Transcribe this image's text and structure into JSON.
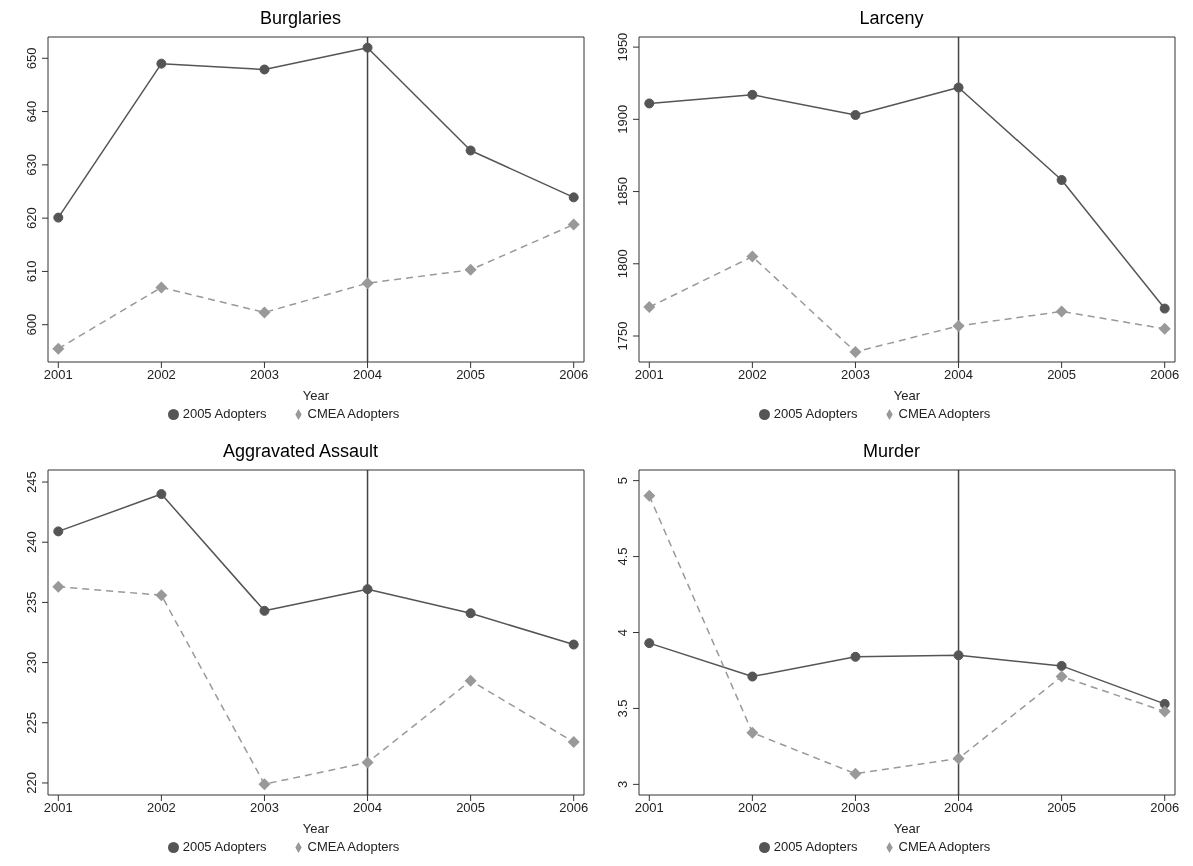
{
  "chart_data": [
    {
      "type": "line",
      "title": "Burglaries",
      "xlabel": "Year",
      "x": [
        2001,
        2002,
        2003,
        2004,
        2005,
        2006
      ],
      "xlim": [
        2000.9,
        2006.1
      ],
      "xticks": [
        2001,
        2002,
        2003,
        2004,
        2005,
        2006
      ],
      "ylim": [
        593,
        654
      ],
      "yticks": [
        600,
        610,
        620,
        630,
        640,
        650
      ],
      "grid": false,
      "legend": "bottom",
      "ref_lines": [
        {
          "axis": "x",
          "value": 2004,
          "color": "#444444"
        }
      ],
      "series": [
        {
          "name": "2005 Adopters",
          "color": "#555555",
          "marker": "circle",
          "line_style": "solid",
          "values": [
            620.1,
            649.0,
            647.9,
            652.0,
            632.7,
            623.9
          ]
        },
        {
          "name": "CMEA Adopters",
          "color": "#999999",
          "marker": "diamond",
          "line_style": "dashed",
          "values": [
            595.5,
            607.0,
            602.3,
            607.8,
            610.3,
            618.8
          ]
        }
      ]
    },
    {
      "type": "line",
      "title": "Larceny",
      "xlabel": "Year",
      "x": [
        2001,
        2002,
        2003,
        2004,
        2005,
        2006
      ],
      "xlim": [
        2000.9,
        2006.1
      ],
      "xticks": [
        2001,
        2002,
        2003,
        2004,
        2005,
        2006
      ],
      "ylim": [
        1732,
        1957
      ],
      "yticks": [
        1750,
        1800,
        1850,
        1900,
        1950
      ],
      "grid": false,
      "legend": "bottom",
      "ref_lines": [
        {
          "axis": "x",
          "value": 2004,
          "color": "#444444"
        }
      ],
      "series": [
        {
          "name": "2005 Adopters",
          "color": "#555555",
          "marker": "circle",
          "line_style": "solid",
          "values": [
            1911,
            1917,
            1903,
            1922,
            1858,
            1769
          ]
        },
        {
          "name": "CMEA Adopters",
          "color": "#999999",
          "marker": "diamond",
          "line_style": "dashed",
          "values": [
            1770,
            1805,
            1739,
            1757,
            1767,
            1755
          ]
        }
      ]
    },
    {
      "type": "line",
      "title": "Aggravated Assault",
      "xlabel": "Year",
      "x": [
        2001,
        2002,
        2003,
        2004,
        2005,
        2006
      ],
      "xlim": [
        2000.9,
        2006.1
      ],
      "xticks": [
        2001,
        2002,
        2003,
        2004,
        2005,
        2006
      ],
      "ylim": [
        219,
        246
      ],
      "yticks": [
        220,
        225,
        230,
        235,
        240,
        245
      ],
      "grid": false,
      "legend": "bottom",
      "ref_lines": [
        {
          "axis": "x",
          "value": 2004,
          "color": "#444444"
        }
      ],
      "series": [
        {
          "name": "2005 Adopters",
          "color": "#555555",
          "marker": "circle",
          "line_style": "solid",
          "values": [
            240.9,
            244.0,
            234.3,
            236.1,
            234.1,
            231.5
          ]
        },
        {
          "name": "CMEA Adopters",
          "color": "#999999",
          "marker": "diamond",
          "line_style": "dashed",
          "values": [
            236.3,
            235.6,
            219.9,
            221.7,
            228.5,
            223.4
          ]
        }
      ]
    },
    {
      "type": "line",
      "title": "Murder",
      "xlabel": "Year",
      "x": [
        2001,
        2002,
        2003,
        2004,
        2005,
        2006
      ],
      "xlim": [
        2000.9,
        2006.1
      ],
      "xticks": [
        2001,
        2002,
        2003,
        2004,
        2005,
        2006
      ],
      "ylim": [
        2.93,
        5.07
      ],
      "yticks": [
        3,
        3.5,
        4,
        4.5,
        5
      ],
      "grid": false,
      "legend": "bottom",
      "ref_lines": [
        {
          "axis": "x",
          "value": 2004,
          "color": "#444444"
        }
      ],
      "series": [
        {
          "name": "2005 Adopters",
          "color": "#555555",
          "marker": "circle",
          "line_style": "solid",
          "values": [
            3.93,
            3.71,
            3.84,
            3.85,
            3.78,
            3.53
          ]
        },
        {
          "name": "CMEA Adopters",
          "color": "#999999",
          "marker": "diamond",
          "line_style": "dashed",
          "values": [
            4.9,
            3.34,
            3.07,
            3.17,
            3.71,
            3.48
          ]
        }
      ]
    }
  ]
}
